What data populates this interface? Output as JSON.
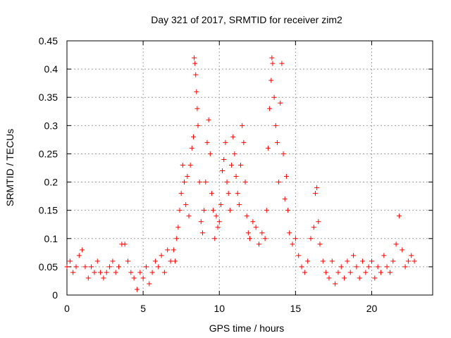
{
  "chart_data": {
    "type": "scatter",
    "title": "Day 321 of 2017, SRMTID for receiver zim2",
    "xlabel": "GPS time / hours",
    "ylabel": "SRMTID / TECUs",
    "xlim": [
      0,
      24
    ],
    "ylim": [
      0,
      0.45
    ],
    "x_ticks": [
      0,
      5,
      10,
      15,
      20
    ],
    "x_tick_labels": [
      "0",
      "5",
      "10",
      "15",
      "20"
    ],
    "y_ticks": [
      0,
      0.05,
      0.1,
      0.15,
      0.2,
      0.25,
      0.3,
      0.35,
      0.4,
      0.45
    ],
    "y_tick_labels": [
      "0",
      "0.05",
      "0.1",
      "0.15",
      "0.2",
      "0.25",
      "0.3",
      "0.35",
      "0.4",
      "0.45"
    ],
    "grid": true,
    "marker": "+",
    "color": "#ff0000",
    "series": [
      {
        "name": "SRMTID",
        "points": [
          [
            0.0,
            0.05
          ],
          [
            0.2,
            0.06
          ],
          [
            0.4,
            0.04
          ],
          [
            0.6,
            0.05
          ],
          [
            0.8,
            0.07
          ],
          [
            1.0,
            0.08
          ],
          [
            1.2,
            0.05
          ],
          [
            1.4,
            0.03
          ],
          [
            1.6,
            0.05
          ],
          [
            1.8,
            0.04
          ],
          [
            2.0,
            0.06
          ],
          [
            2.2,
            0.04
          ],
          [
            2.4,
            0.03
          ],
          [
            2.6,
            0.04
          ],
          [
            2.8,
            0.05
          ],
          [
            3.0,
            0.06
          ],
          [
            3.2,
            0.04
          ],
          [
            3.4,
            0.05
          ],
          [
            3.6,
            0.09
          ],
          [
            3.8,
            0.09
          ],
          [
            4.0,
            0.06
          ],
          [
            4.2,
            0.04
          ],
          [
            4.4,
            0.03
          ],
          [
            4.6,
            0.01
          ],
          [
            4.8,
            0.04
          ],
          [
            5.0,
            0.03
          ],
          [
            5.2,
            0.05
          ],
          [
            5.4,
            0.02
          ],
          [
            5.6,
            0.04
          ],
          [
            5.8,
            0.06
          ],
          [
            6.0,
            0.05
          ],
          [
            6.2,
            0.07
          ],
          [
            6.4,
            0.04
          ],
          [
            6.6,
            0.08
          ],
          [
            6.8,
            0.06
          ],
          [
            7.0,
            0.08
          ],
          [
            7.1,
            0.06
          ],
          [
            7.2,
            0.1
          ],
          [
            7.3,
            0.12
          ],
          [
            7.4,
            0.15
          ],
          [
            7.5,
            0.18
          ],
          [
            7.6,
            0.23
          ],
          [
            7.7,
            0.2
          ],
          [
            7.8,
            0.16
          ],
          [
            7.9,
            0.21
          ],
          [
            8.0,
            0.14
          ],
          [
            8.1,
            0.23
          ],
          [
            8.2,
            0.26
          ],
          [
            8.3,
            0.28
          ],
          [
            8.35,
            0.42
          ],
          [
            8.4,
            0.41
          ],
          [
            8.45,
            0.39
          ],
          [
            8.5,
            0.36
          ],
          [
            8.55,
            0.33
          ],
          [
            8.6,
            0.3
          ],
          [
            8.7,
            0.2
          ],
          [
            8.8,
            0.13
          ],
          [
            8.9,
            0.11
          ],
          [
            9.0,
            0.15
          ],
          [
            9.1,
            0.2
          ],
          [
            9.2,
            0.27
          ],
          [
            9.3,
            0.31
          ],
          [
            9.4,
            0.25
          ],
          [
            9.5,
            0.18
          ],
          [
            9.6,
            0.15
          ],
          [
            9.7,
            0.1
          ],
          [
            9.8,
            0.14
          ],
          [
            9.9,
            0.12
          ],
          [
            10.0,
            0.13
          ],
          [
            10.1,
            0.16
          ],
          [
            10.2,
            0.22
          ],
          [
            10.3,
            0.24
          ],
          [
            10.4,
            0.27
          ],
          [
            10.5,
            0.2
          ],
          [
            10.6,
            0.18
          ],
          [
            10.7,
            0.15
          ],
          [
            10.8,
            0.23
          ],
          [
            10.9,
            0.28
          ],
          [
            11.0,
            0.25
          ],
          [
            11.1,
            0.21
          ],
          [
            11.2,
            0.18
          ],
          [
            11.3,
            0.16
          ],
          [
            11.4,
            0.23
          ],
          [
            11.5,
            0.3
          ],
          [
            11.6,
            0.27
          ],
          [
            11.7,
            0.2
          ],
          [
            11.8,
            0.14
          ],
          [
            11.9,
            0.11
          ],
          [
            12.0,
            0.1
          ],
          [
            12.2,
            0.13
          ],
          [
            12.4,
            0.12
          ],
          [
            12.6,
            0.09
          ],
          [
            12.8,
            0.11
          ],
          [
            13.0,
            0.1
          ],
          [
            13.1,
            0.15
          ],
          [
            13.2,
            0.26
          ],
          [
            13.3,
            0.33
          ],
          [
            13.4,
            0.38
          ],
          [
            13.45,
            0.42
          ],
          [
            13.5,
            0.41
          ],
          [
            13.6,
            0.35
          ],
          [
            13.7,
            0.3
          ],
          [
            13.8,
            0.27
          ],
          [
            13.9,
            0.2
          ],
          [
            14.0,
            0.34
          ],
          [
            14.1,
            0.41
          ],
          [
            14.2,
            0.25
          ],
          [
            14.3,
            0.17
          ],
          [
            14.4,
            0.21
          ],
          [
            14.5,
            0.15
          ],
          [
            14.6,
            0.11
          ],
          [
            14.8,
            0.09
          ],
          [
            15.0,
            0.1
          ],
          [
            15.2,
            0.07
          ],
          [
            15.4,
            0.05
          ],
          [
            15.6,
            0.04
          ],
          [
            15.8,
            0.06
          ],
          [
            16.0,
            0.1
          ],
          [
            16.2,
            0.12
          ],
          [
            16.3,
            0.18
          ],
          [
            16.4,
            0.19
          ],
          [
            16.5,
            0.13
          ],
          [
            16.6,
            0.09
          ],
          [
            16.8,
            0.06
          ],
          [
            17.0,
            0.04
          ],
          [
            17.2,
            0.03
          ],
          [
            17.4,
            0.06
          ],
          [
            17.6,
            0.02
          ],
          [
            17.8,
            0.04
          ],
          [
            18.0,
            0.05
          ],
          [
            18.2,
            0.03
          ],
          [
            18.4,
            0.06
          ],
          [
            18.6,
            0.04
          ],
          [
            18.8,
            0.07
          ],
          [
            19.0,
            0.05
          ],
          [
            19.2,
            0.03
          ],
          [
            19.4,
            0.06
          ],
          [
            19.6,
            0.04
          ],
          [
            19.8,
            0.05
          ],
          [
            20.0,
            0.06
          ],
          [
            20.2,
            0.03
          ],
          [
            20.4,
            0.05
          ],
          [
            20.6,
            0.04
          ],
          [
            20.8,
            0.07
          ],
          [
            21.0,
            0.05
          ],
          [
            21.2,
            0.04
          ],
          [
            21.4,
            0.06
          ],
          [
            21.6,
            0.09
          ],
          [
            21.8,
            0.14
          ],
          [
            22.0,
            0.08
          ],
          [
            22.2,
            0.05
          ],
          [
            22.4,
            0.06
          ],
          [
            22.6,
            0.07
          ],
          [
            22.8,
            0.06
          ]
        ]
      }
    ]
  }
}
